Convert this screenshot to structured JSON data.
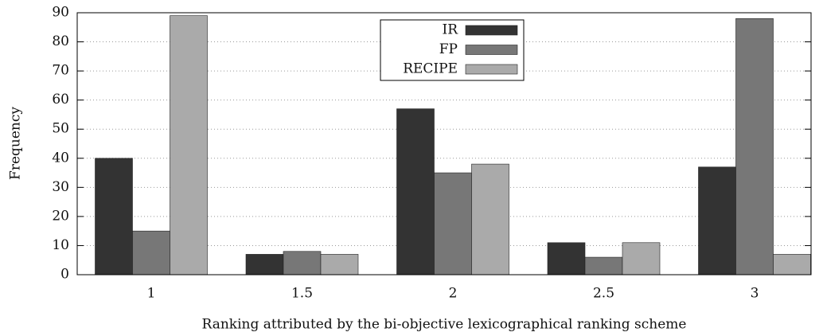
{
  "chart_data": {
    "type": "bar",
    "x_label": "Ranking attributed by the bi-objective lexicographical ranking scheme",
    "y_label": "Frequency",
    "categories": [
      "1",
      "1.5",
      "2",
      "2.5",
      "3"
    ],
    "series": [
      {
        "name": "IR",
        "color": "#333333",
        "values": [
          40,
          7,
          57,
          11,
          37
        ]
      },
      {
        "name": "FP",
        "color": "#777777",
        "values": [
          15,
          8,
          35,
          6,
          88
        ]
      },
      {
        "name": "RECIPE",
        "color": "#aaaaaa",
        "values": [
          89,
          7,
          38,
          11,
          7
        ]
      }
    ],
    "ylim": [
      0,
      90
    ],
    "yticks": [
      0,
      10,
      20,
      30,
      40,
      50,
      60,
      70,
      80,
      90
    ],
    "grid": true,
    "legend": "top"
  }
}
